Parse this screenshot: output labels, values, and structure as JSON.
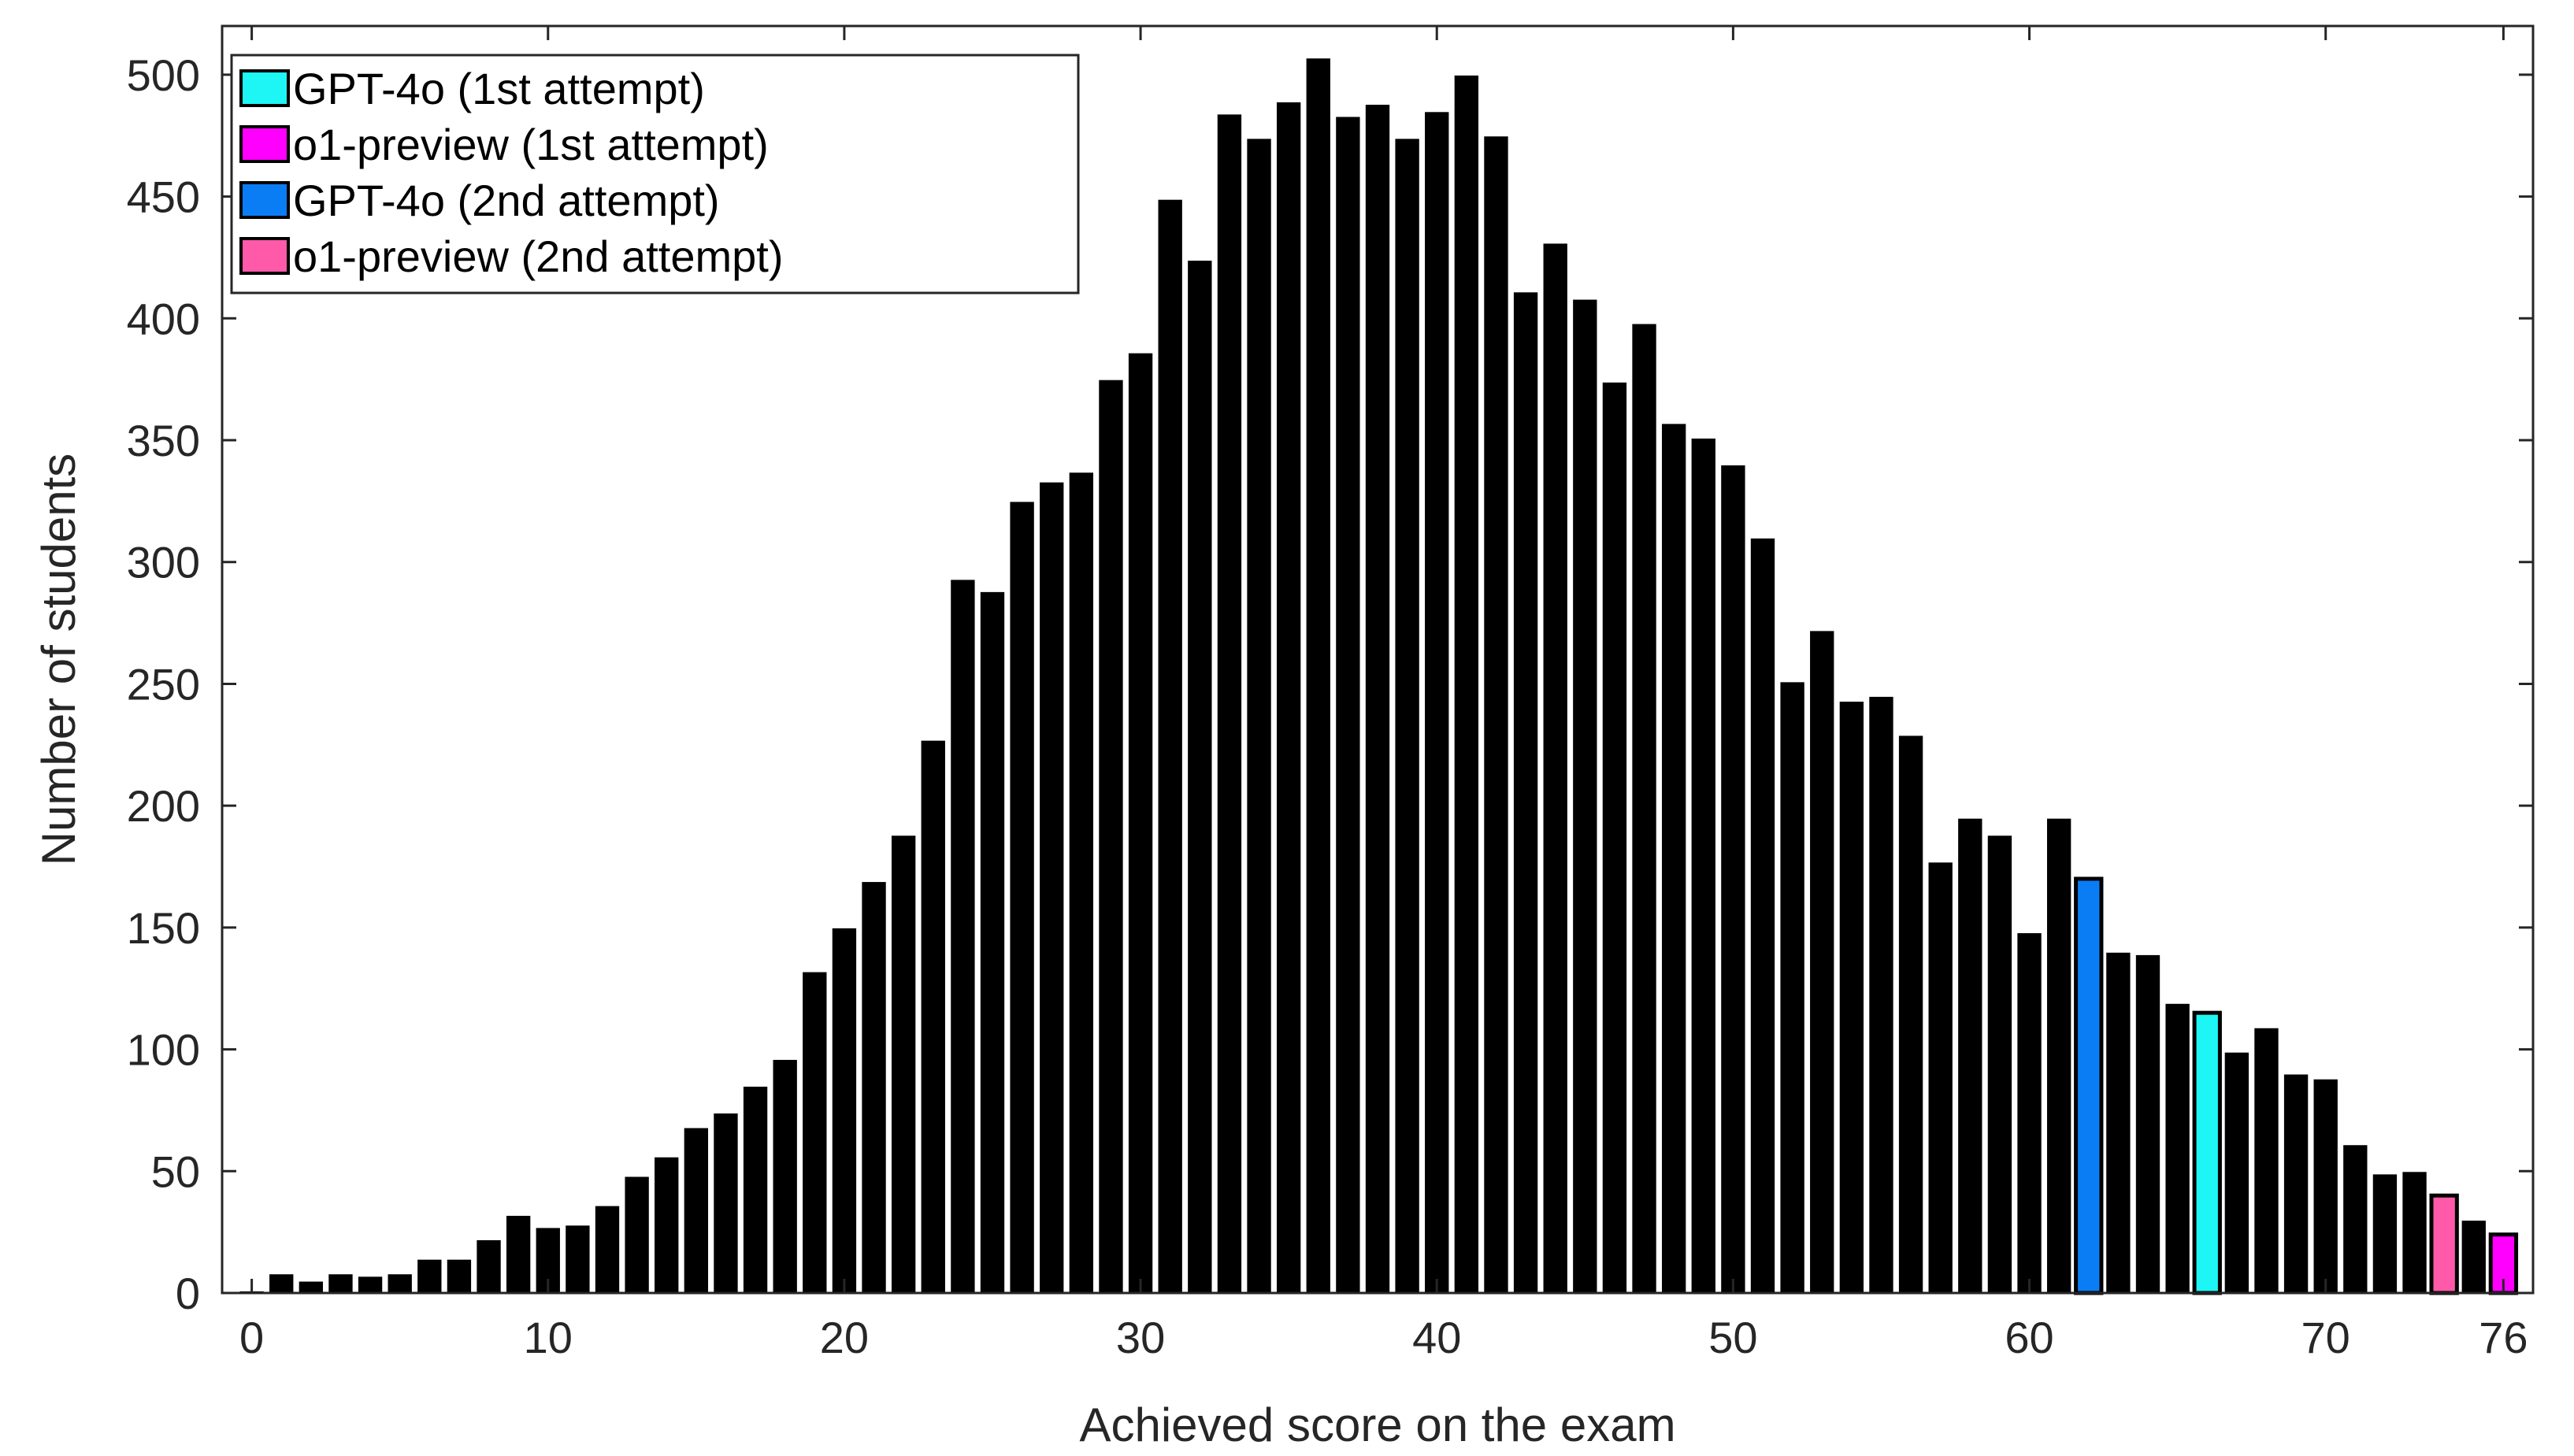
{
  "chart_data": {
    "type": "bar",
    "xlabel": "Achieved score on the exam",
    "ylabel": "Number of students",
    "xlim": [
      -1,
      77
    ],
    "ylim": [
      0,
      520
    ],
    "xticks": [
      0,
      10,
      20,
      30,
      40,
      50,
      60,
      70,
      76
    ],
    "yticks": [
      0,
      50,
      100,
      150,
      200,
      250,
      300,
      350,
      400,
      450,
      500
    ],
    "grid": false,
    "legend_position": "top-left",
    "x": [
      0,
      1,
      2,
      3,
      4,
      5,
      6,
      7,
      8,
      9,
      10,
      11,
      12,
      13,
      14,
      15,
      16,
      17,
      18,
      19,
      20,
      21,
      22,
      23,
      24,
      25,
      26,
      27,
      28,
      29,
      30,
      31,
      32,
      33,
      34,
      35,
      36,
      37,
      38,
      39,
      40,
      41,
      42,
      43,
      44,
      45,
      46,
      47,
      48,
      49,
      50,
      51,
      52,
      53,
      54,
      55,
      56,
      57,
      58,
      59,
      60,
      61,
      62,
      63,
      64,
      65,
      66,
      67,
      68,
      69,
      70,
      71,
      72,
      73,
      74,
      75,
      76
    ],
    "values": [
      1,
      8,
      5,
      8,
      7,
      8,
      14,
      14,
      22,
      32,
      27,
      28,
      36,
      48,
      56,
      68,
      74,
      85,
      96,
      132,
      150,
      169,
      188,
      227,
      293,
      288,
      325,
      333,
      337,
      375,
      386,
      449,
      424,
      484,
      474,
      489,
      507,
      483,
      488,
      474,
      485,
      500,
      475,
      411,
      431,
      408,
      374,
      398,
      357,
      351,
      340,
      310,
      251,
      272,
      243,
      245,
      229,
      177,
      195,
      188,
      148,
      195,
      170,
      140,
      139,
      119,
      115,
      99,
      109,
      90,
      88,
      61,
      49,
      50,
      40,
      30,
      24
    ],
    "highlights": [
      {
        "name": "GPT-4o (1st attempt)",
        "x": 66,
        "color": "#1ef5f5"
      },
      {
        "name": "o1-preview (1st attempt)",
        "x": 76,
        "color": "#ff00ff"
      },
      {
        "name": "GPT-4o (2nd attempt)",
        "x": 62,
        "color": "#0a7df5"
      },
      {
        "name": "o1-preview (2nd attempt)",
        "x": 74,
        "color": "#ff5aaa"
      }
    ],
    "bar_color": "#000000"
  }
}
